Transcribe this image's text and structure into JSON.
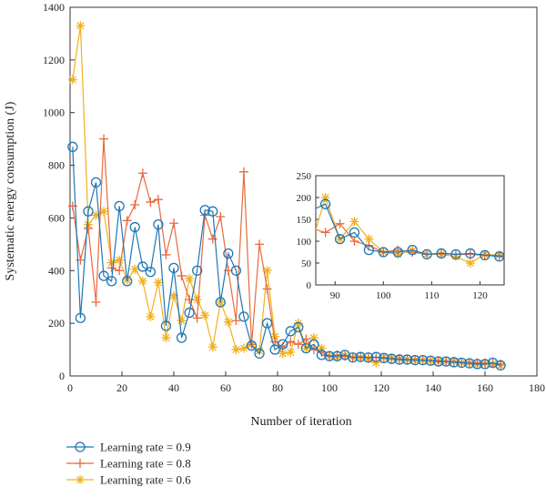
{
  "chart_data": {
    "type": "line",
    "xlabel": "Number of iteration",
    "ylabel": "Systematic energy consumption (J)",
    "xlim": [
      0,
      180
    ],
    "ylim": [
      0,
      1400
    ],
    "xticks": [
      0,
      20,
      40,
      60,
      80,
      100,
      120,
      140,
      160,
      180
    ],
    "yticks": [
      0,
      200,
      400,
      600,
      800,
      1000,
      1200,
      1400
    ],
    "grid": false,
    "legend_position": "below-left",
    "series": [
      {
        "name": "Learning rate = 0.9",
        "color": "#1f77b4",
        "marker": "circle",
        "points": [
          [
            1,
            870
          ],
          [
            4,
            220
          ],
          [
            7,
            625
          ],
          [
            10,
            735
          ],
          [
            13,
            380
          ],
          [
            16,
            360
          ],
          [
            19,
            645
          ],
          [
            22,
            360
          ],
          [
            25,
            565
          ],
          [
            28,
            415
          ],
          [
            31,
            395
          ],
          [
            34,
            575
          ],
          [
            37,
            190
          ],
          [
            40,
            410
          ],
          [
            43,
            145
          ],
          [
            46,
            240
          ],
          [
            49,
            400
          ],
          [
            52,
            630
          ],
          [
            55,
            625
          ],
          [
            58,
            280
          ],
          [
            61,
            465
          ],
          [
            64,
            400
          ],
          [
            67,
            225
          ],
          [
            70,
            115
          ],
          [
            73,
            85
          ],
          [
            76,
            200
          ],
          [
            79,
            100
          ],
          [
            82,
            120
          ],
          [
            85,
            170
          ],
          [
            88,
            185
          ],
          [
            91,
            105
          ],
          [
            94,
            120
          ],
          [
            97,
            80
          ],
          [
            100,
            75
          ],
          [
            103,
            75
          ],
          [
            106,
            80
          ],
          [
            109,
            70
          ],
          [
            112,
            72
          ],
          [
            115,
            70
          ],
          [
            118,
            72
          ],
          [
            121,
            68
          ],
          [
            124,
            65
          ],
          [
            127,
            62
          ],
          [
            130,
            62
          ],
          [
            133,
            60
          ],
          [
            136,
            60
          ],
          [
            139,
            58
          ],
          [
            142,
            55
          ],
          [
            145,
            55
          ],
          [
            148,
            52
          ],
          [
            151,
            50
          ],
          [
            154,
            48
          ],
          [
            157,
            45
          ],
          [
            160,
            45
          ],
          [
            163,
            50
          ],
          [
            166,
            40
          ]
        ]
      },
      {
        "name": "Learning rate = 0.8",
        "color": "#e8693d",
        "marker": "plus",
        "points": [
          [
            1,
            645
          ],
          [
            4,
            440
          ],
          [
            7,
            560
          ],
          [
            10,
            280
          ],
          [
            13,
            900
          ],
          [
            16,
            410
          ],
          [
            19,
            400
          ],
          [
            22,
            590
          ],
          [
            25,
            650
          ],
          [
            28,
            770
          ],
          [
            31,
            660
          ],
          [
            34,
            670
          ],
          [
            37,
            460
          ],
          [
            40,
            580
          ],
          [
            43,
            380
          ],
          [
            46,
            290
          ],
          [
            49,
            220
          ],
          [
            52,
            610
          ],
          [
            55,
            520
          ],
          [
            58,
            605
          ],
          [
            61,
            400
          ],
          [
            64,
            210
          ],
          [
            67,
            775
          ],
          [
            70,
            120
          ],
          [
            73,
            500
          ],
          [
            76,
            330
          ],
          [
            79,
            130
          ],
          [
            82,
            110
          ],
          [
            85,
            130
          ],
          [
            88,
            120
          ],
          [
            91,
            140
          ],
          [
            94,
            100
          ],
          [
            97,
            90
          ],
          [
            100,
            75
          ],
          [
            103,
            80
          ],
          [
            106,
            75
          ],
          [
            109,
            70
          ],
          [
            112,
            72
          ],
          [
            115,
            70
          ],
          [
            118,
            70
          ],
          [
            121,
            68
          ],
          [
            124,
            67
          ],
          [
            127,
            65
          ],
          [
            130,
            62
          ],
          [
            133,
            62
          ],
          [
            136,
            60
          ],
          [
            139,
            58
          ],
          [
            142,
            58
          ],
          [
            145,
            55
          ],
          [
            148,
            55
          ],
          [
            151,
            52
          ],
          [
            154,
            50
          ],
          [
            157,
            50
          ],
          [
            160,
            48
          ],
          [
            163,
            48
          ],
          [
            166,
            45
          ]
        ]
      },
      {
        "name": "Learning rate = 0.6",
        "color": "#f2b01e",
        "marker": "star",
        "points": [
          [
            1,
            1125
          ],
          [
            4,
            1330
          ],
          [
            7,
            575
          ],
          [
            10,
            610
          ],
          [
            13,
            625
          ],
          [
            16,
            430
          ],
          [
            19,
            440
          ],
          [
            22,
            365
          ],
          [
            25,
            405
          ],
          [
            28,
            360
          ],
          [
            31,
            225
          ],
          [
            34,
            355
          ],
          [
            37,
            145
          ],
          [
            40,
            305
          ],
          [
            43,
            210
          ],
          [
            46,
            370
          ],
          [
            49,
            290
          ],
          [
            52,
            230
          ],
          [
            55,
            110
          ],
          [
            58,
            280
          ],
          [
            61,
            205
          ],
          [
            64,
            100
          ],
          [
            67,
            105
          ],
          [
            70,
            120
          ],
          [
            73,
            95
          ],
          [
            76,
            400
          ],
          [
            79,
            150
          ],
          [
            82,
            85
          ],
          [
            85,
            90
          ],
          [
            88,
            200
          ],
          [
            91,
            105
          ],
          [
            94,
            145
          ],
          [
            97,
            105
          ],
          [
            100,
            75
          ],
          [
            103,
            70
          ],
          [
            106,
            78
          ],
          [
            109,
            70
          ],
          [
            112,
            70
          ],
          [
            115,
            65
          ],
          [
            118,
            50
          ],
          [
            121,
            70
          ],
          [
            124,
            68
          ],
          [
            127,
            65
          ],
          [
            130,
            62
          ],
          [
            133,
            60
          ],
          [
            136,
            60
          ],
          [
            139,
            58
          ],
          [
            142,
            55
          ],
          [
            145,
            55
          ],
          [
            148,
            55
          ],
          [
            151,
            50
          ],
          [
            154,
            50
          ],
          [
            157,
            45
          ],
          [
            160,
            48
          ],
          [
            163,
            45
          ],
          [
            166,
            40
          ]
        ]
      }
    ],
    "inset": {
      "xlim": [
        86,
        125
      ],
      "ylim": [
        0,
        250
      ],
      "xticks": [
        90,
        100,
        110,
        120
      ],
      "yticks": [
        0,
        50,
        100,
        150,
        200,
        250
      ]
    }
  }
}
